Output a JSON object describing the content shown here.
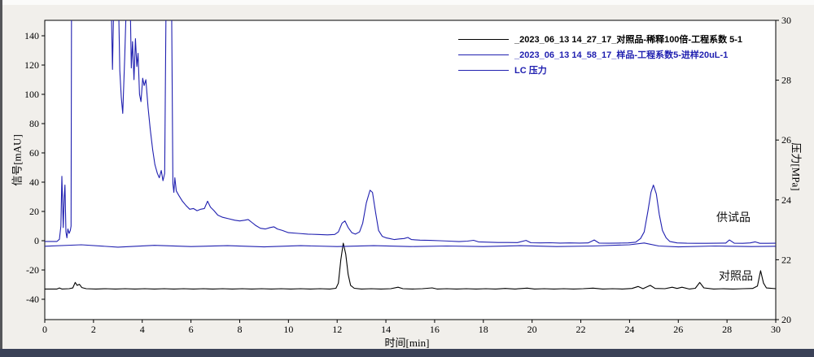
{
  "window": {
    "background": "#f1efeb",
    "bottom_bar_color": "#3a4157",
    "plot_background": "#ffffff"
  },
  "annotations": {
    "sample_label": "供试品",
    "reference_label": "对照品"
  },
  "legend": [
    {
      "label": "_2023_06_13 14_27_17_对照品-稀释100倍-工程系数 5-1",
      "color": "#000000"
    },
    {
      "label": "_2023_06_13 14_58_17_样品-工程系数5-进样20uL-1",
      "color": "#2020b0"
    },
    {
      "label": "LC 压力",
      "color": "#2020b0"
    }
  ],
  "chart_data": {
    "type": "line",
    "title": "",
    "xlabel": "时间[min]",
    "ylabel_left": "信号[mAU]",
    "ylabel_right": "压力[MPa]",
    "grid": false,
    "legend_position": "top-right",
    "x_axis": {
      "range": [
        0,
        30
      ],
      "ticks": [
        0,
        2,
        4,
        6,
        8,
        10,
        12,
        14,
        16,
        18,
        20,
        22,
        24,
        26,
        28,
        30
      ]
    },
    "y_axis_left": {
      "unit": "mAU",
      "ticks": [
        -40,
        -20,
        0,
        20,
        40,
        60,
        80,
        100,
        120,
        140
      ],
      "note": "blue sample trace clipped above ~150 mAU during solvent front"
    },
    "y_axis_right": {
      "unit": "MPa",
      "range": [
        20,
        30
      ],
      "ticks": [
        20,
        22,
        24,
        26,
        28,
        30
      ]
    },
    "series": [
      {
        "name": "_2023_06_13 14_27_17_对照品-稀释100倍-工程系数 5-1",
        "color": "#000000",
        "axis": "left",
        "points": [
          [
            0,
            -33
          ],
          [
            0.5,
            -33
          ],
          [
            0.6,
            -32.3
          ],
          [
            0.7,
            -33
          ],
          [
            1.0,
            -32.8
          ],
          [
            1.15,
            -32.3
          ],
          [
            1.25,
            -28.5
          ],
          [
            1.33,
            -30.5
          ],
          [
            1.42,
            -29.8
          ],
          [
            1.52,
            -32
          ],
          [
            1.7,
            -32.8
          ],
          [
            2.1,
            -33
          ],
          [
            2.5,
            -32.8
          ],
          [
            2.9,
            -33
          ],
          [
            3.3,
            -32.8
          ],
          [
            3.7,
            -33
          ],
          [
            4.1,
            -32.8
          ],
          [
            4.5,
            -33
          ],
          [
            4.9,
            -32.8
          ],
          [
            5.3,
            -33
          ],
          [
            5.7,
            -32.8
          ],
          [
            6.1,
            -33
          ],
          [
            6.5,
            -32.8
          ],
          [
            6.9,
            -33
          ],
          [
            7.3,
            -32.8
          ],
          [
            7.7,
            -33
          ],
          [
            8.1,
            -32.8
          ],
          [
            8.5,
            -33
          ],
          [
            8.9,
            -32.8
          ],
          [
            9.3,
            -33
          ],
          [
            9.7,
            -32.8
          ],
          [
            10.1,
            -33
          ],
          [
            10.5,
            -32.8
          ],
          [
            10.9,
            -33
          ],
          [
            11.3,
            -32.8
          ],
          [
            11.7,
            -33
          ],
          [
            11.95,
            -32.5
          ],
          [
            12.05,
            -29
          ],
          [
            12.15,
            -13
          ],
          [
            12.25,
            -1.7
          ],
          [
            12.35,
            -9
          ],
          [
            12.45,
            -23
          ],
          [
            12.55,
            -30.5
          ],
          [
            12.7,
            -32.5
          ],
          [
            13.0,
            -33
          ],
          [
            13.4,
            -32.8
          ],
          [
            13.8,
            -33
          ],
          [
            14.2,
            -32.8
          ],
          [
            14.5,
            -31.8
          ],
          [
            14.7,
            -32.8
          ],
          [
            15.1,
            -33
          ],
          [
            15.5,
            -32.8
          ],
          [
            15.9,
            -32.2
          ],
          [
            16.1,
            -33
          ],
          [
            16.5,
            -32.8
          ],
          [
            16.9,
            -33
          ],
          [
            17.3,
            -32.8
          ],
          [
            17.7,
            -33
          ],
          [
            18.1,
            -32.8
          ],
          [
            18.5,
            -33
          ],
          [
            18.9,
            -32.6
          ],
          [
            19.3,
            -33
          ],
          [
            19.8,
            -32.4
          ],
          [
            20.1,
            -33
          ],
          [
            20.5,
            -32.8
          ],
          [
            20.9,
            -33
          ],
          [
            21.3,
            -32.8
          ],
          [
            21.7,
            -33
          ],
          [
            22.1,
            -32.8
          ],
          [
            22.5,
            -32.4
          ],
          [
            22.9,
            -33
          ],
          [
            23.3,
            -32.8
          ],
          [
            23.7,
            -33
          ],
          [
            24.1,
            -32.6
          ],
          [
            24.35,
            -31.3
          ],
          [
            24.55,
            -32.8
          ],
          [
            24.85,
            -30.5
          ],
          [
            25.05,
            -32.6
          ],
          [
            25.45,
            -32.8
          ],
          [
            25.75,
            -31.8
          ],
          [
            25.95,
            -32.6
          ],
          [
            26.15,
            -31.8
          ],
          [
            26.45,
            -33
          ],
          [
            26.7,
            -32.5
          ],
          [
            26.88,
            -28.5
          ],
          [
            27.05,
            -32.2
          ],
          [
            27.45,
            -33
          ],
          [
            27.85,
            -32.8
          ],
          [
            28.25,
            -33
          ],
          [
            28.65,
            -32.8
          ],
          [
            29.05,
            -32.6
          ],
          [
            29.25,
            -31
          ],
          [
            29.38,
            -20.5
          ],
          [
            29.5,
            -29
          ],
          [
            29.62,
            -32.3
          ],
          [
            30,
            -32.8
          ]
        ]
      },
      {
        "name": "_2023_06_13 14_58_17_样品-工程系数5-进样20uL-1",
        "color": "#2020b0",
        "axis": "left",
        "points": [
          [
            0,
            -0.5
          ],
          [
            0.5,
            -0.5
          ],
          [
            0.6,
            1
          ],
          [
            0.66,
            10
          ],
          [
            0.7,
            44
          ],
          [
            0.74,
            20
          ],
          [
            0.76,
            9
          ],
          [
            0.8,
            30
          ],
          [
            0.83,
            38
          ],
          [
            0.87,
            6
          ],
          [
            0.91,
            2
          ],
          [
            0.95,
            8
          ],
          [
            1.0,
            5
          ],
          [
            1.05,
            7
          ],
          [
            1.08,
            10
          ],
          [
            1.1,
            170
          ],
          [
            2.72,
            170
          ],
          [
            2.78,
            117
          ],
          [
            2.84,
            170
          ],
          [
            3.02,
            170
          ],
          [
            3.08,
            116
          ],
          [
            3.14,
            98
          ],
          [
            3.2,
            87
          ],
          [
            3.28,
            125
          ],
          [
            3.36,
            170
          ],
          [
            3.5,
            170
          ],
          [
            3.55,
            118
          ],
          [
            3.6,
            136
          ],
          [
            3.66,
            110
          ],
          [
            3.72,
            138
          ],
          [
            3.78,
            119
          ],
          [
            3.83,
            128
          ],
          [
            3.89,
            100
          ],
          [
            3.95,
            95
          ],
          [
            4.02,
            111
          ],
          [
            4.08,
            106
          ],
          [
            4.15,
            110
          ],
          [
            4.24,
            91
          ],
          [
            4.33,
            76
          ],
          [
            4.43,
            62
          ],
          [
            4.52,
            52
          ],
          [
            4.62,
            46
          ],
          [
            4.7,
            43
          ],
          [
            4.78,
            48
          ],
          [
            4.85,
            41
          ],
          [
            4.92,
            46
          ],
          [
            4.98,
            170
          ],
          [
            5.2,
            170
          ],
          [
            5.26,
            39
          ],
          [
            5.3,
            33
          ],
          [
            5.34,
            43
          ],
          [
            5.4,
            34
          ],
          [
            5.5,
            31
          ],
          [
            5.65,
            27
          ],
          [
            5.8,
            24
          ],
          [
            5.95,
            21.5
          ],
          [
            6.1,
            22
          ],
          [
            6.25,
            20.5
          ],
          [
            6.4,
            21.5
          ],
          [
            6.55,
            22
          ],
          [
            6.68,
            27
          ],
          [
            6.8,
            23
          ],
          [
            6.95,
            20.5
          ],
          [
            7.1,
            17.5
          ],
          [
            7.3,
            16
          ],
          [
            7.55,
            15
          ],
          [
            7.8,
            14
          ],
          [
            8.0,
            13.5
          ],
          [
            8.2,
            14
          ],
          [
            8.35,
            14.5
          ],
          [
            8.5,
            12.5
          ],
          [
            8.65,
            10.5
          ],
          [
            8.85,
            8.5
          ],
          [
            9.05,
            8
          ],
          [
            9.25,
            9
          ],
          [
            9.4,
            9.5
          ],
          [
            9.55,
            8
          ],
          [
            9.75,
            7
          ],
          [
            10.0,
            5.5
          ],
          [
            10.4,
            5
          ],
          [
            10.8,
            4.5
          ],
          [
            11.2,
            4.3
          ],
          [
            11.6,
            4
          ],
          [
            11.9,
            4.3
          ],
          [
            12.05,
            6
          ],
          [
            12.2,
            12
          ],
          [
            12.32,
            13.5
          ],
          [
            12.45,
            9
          ],
          [
            12.6,
            5.5
          ],
          [
            12.75,
            4.5
          ],
          [
            12.92,
            6
          ],
          [
            13.05,
            12
          ],
          [
            13.2,
            26
          ],
          [
            13.35,
            34.5
          ],
          [
            13.45,
            33
          ],
          [
            13.58,
            19
          ],
          [
            13.7,
            7
          ],
          [
            13.85,
            3
          ],
          [
            14.0,
            2
          ],
          [
            14.15,
            1.5
          ],
          [
            14.35,
            0.8
          ],
          [
            14.55,
            1.2
          ],
          [
            14.75,
            1.5
          ],
          [
            14.9,
            2.2
          ],
          [
            15.05,
            0.8
          ],
          [
            15.4,
            0.4
          ],
          [
            15.8,
            0.2
          ],
          [
            16.2,
            0
          ],
          [
            16.6,
            -0.3
          ],
          [
            17.0,
            -0.6
          ],
          [
            17.35,
            -0.3
          ],
          [
            17.6,
            0.3
          ],
          [
            17.8,
            -0.8
          ],
          [
            18.2,
            -1
          ],
          [
            18.6,
            -1.2
          ],
          [
            19.0,
            -1.2
          ],
          [
            19.4,
            -1.3
          ],
          [
            19.75,
            0.2
          ],
          [
            19.95,
            -1.4
          ],
          [
            20.35,
            -1.5
          ],
          [
            20.75,
            -1.4
          ],
          [
            21.15,
            -1.6
          ],
          [
            21.55,
            -1.5
          ],
          [
            21.95,
            -1.6
          ],
          [
            22.3,
            -1.5
          ],
          [
            22.55,
            0.5
          ],
          [
            22.75,
            -1.6
          ],
          [
            23.15,
            -1.7
          ],
          [
            23.55,
            -1.6
          ],
          [
            23.95,
            -1.5
          ],
          [
            24.25,
            -1
          ],
          [
            24.45,
            1.5
          ],
          [
            24.6,
            6
          ],
          [
            24.75,
            20
          ],
          [
            24.88,
            33
          ],
          [
            24.98,
            38
          ],
          [
            25.1,
            32
          ],
          [
            25.22,
            18
          ],
          [
            25.35,
            7
          ],
          [
            25.5,
            2
          ],
          [
            25.65,
            -0.5
          ],
          [
            25.95,
            -1.5
          ],
          [
            26.35,
            -1.7
          ],
          [
            26.75,
            -1.8
          ],
          [
            27.15,
            -1.8
          ],
          [
            27.55,
            -1.7
          ],
          [
            27.95,
            -1.6
          ],
          [
            28.1,
            0.5
          ],
          [
            28.3,
            -1.7
          ],
          [
            28.65,
            -1.8
          ],
          [
            28.95,
            -1.5
          ],
          [
            29.15,
            -0.8
          ],
          [
            29.35,
            -1.8
          ],
          [
            29.65,
            -1.8
          ],
          [
            30,
            -1.7
          ]
        ]
      },
      {
        "name": "LC 压力",
        "color": "#2020b0",
        "axis": "right",
        "points": [
          [
            0,
            22.45
          ],
          [
            1.5,
            22.5
          ],
          [
            3,
            22.42
          ],
          [
            4.5,
            22.48
          ],
          [
            6,
            22.44
          ],
          [
            7.5,
            22.47
          ],
          [
            9,
            22.43
          ],
          [
            10.5,
            22.47
          ],
          [
            12,
            22.44
          ],
          [
            13.5,
            22.47
          ],
          [
            15,
            22.44
          ],
          [
            16.5,
            22.46
          ],
          [
            18,
            22.44
          ],
          [
            19.5,
            22.47
          ],
          [
            21,
            22.44
          ],
          [
            22.5,
            22.46
          ],
          [
            24,
            22.5
          ],
          [
            24.6,
            22.56
          ],
          [
            25.2,
            22.46
          ],
          [
            26,
            22.43
          ],
          [
            27.5,
            22.46
          ],
          [
            29,
            22.44
          ],
          [
            30,
            22.45
          ]
        ]
      }
    ]
  }
}
